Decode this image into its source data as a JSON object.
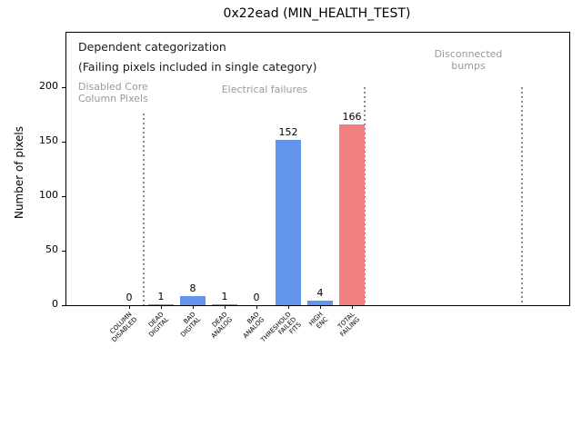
{
  "title": "0x22ead (MIN_HEALTH_TEST)",
  "ylabel": "Number of pixels",
  "annotations": {
    "dependent_line1": "Dependent categorization",
    "dependent_line2": "(Failing pixels included in single category)",
    "region_disabled": "Disabled Core\nColumn Pixels",
    "region_electrical": "Electrical failures",
    "region_disconnected": "Disconnected\nbumps"
  },
  "colors": {
    "bar_blue": "#6495ED",
    "bar_red": "#F08080",
    "gray_text": "#999999",
    "dotted_line": "#888888",
    "axis": "#000000"
  },
  "chart_data": {
    "type": "bar",
    "title": "0x22ead (MIN_HEALTH_TEST)",
    "xlabel": "",
    "ylabel": "Number of pixels",
    "categories": [
      "COLUMN\nDISABLED",
      "DEAD\nDIGITAL",
      "BAD\nDIGITAL",
      "DEAD\nANALOG",
      "BAD\nANALOG",
      "THRESHOLD\nFAILED\nFITS",
      "HIGH\nENC",
      "TOTAL\nFAILING"
    ],
    "values": [
      0,
      1,
      8,
      1,
      0,
      152,
      4,
      166
    ],
    "value_labels": [
      "0",
      "1",
      "8",
      "1",
      "0",
      "152",
      "4",
      "166"
    ],
    "bar_colors": [
      "#6495ED",
      "#6495ED",
      "#6495ED",
      "#6495ED",
      "#6495ED",
      "#6495ED",
      "#6495ED",
      "#F08080"
    ],
    "yticks": [
      0,
      50,
      100,
      150,
      200
    ],
    "ylim": [
      0,
      250
    ],
    "grid": false,
    "legend": null,
    "region_separators": [
      {
        "label_left": "Disabled Core\nColumn Pixels",
        "line_top_value": 176
      },
      {
        "label_between": "Electrical failures",
        "line_top_value": 200
      },
      {
        "label_between": "Disconnected\nbumps",
        "line_top_value": 200
      }
    ]
  }
}
